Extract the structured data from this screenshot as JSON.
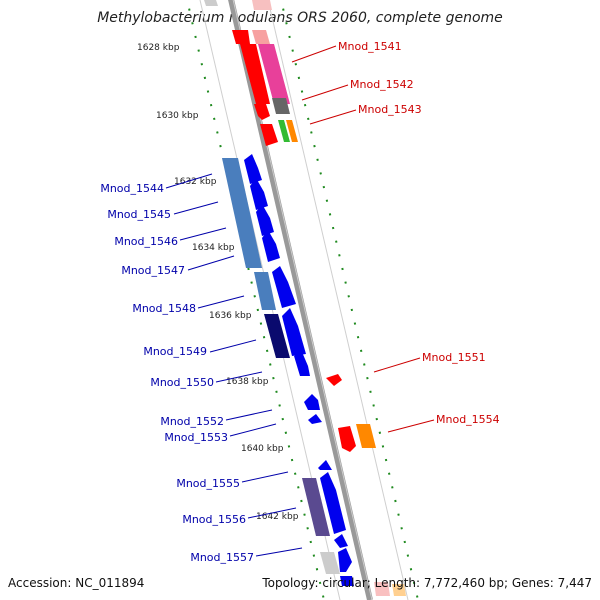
{
  "title": "Methylobacterium nodulans ORS 2060, complete genome",
  "accession_text": "Accession: NC_011894",
  "summary_text": "Topology: circular; Length: 7,772,460 bp; Genes: 7,447",
  "ticks": [
    "1628 kbp",
    "1630 kbp",
    "1632 kbp",
    "1634 kbp",
    "1636 kbp",
    "1638 kbp",
    "1640 kbp",
    "1642 kbp"
  ],
  "genes_forward": [
    "Mnod_1541",
    "Mnod_1542",
    "Mnod_1543",
    "Mnod_1551",
    "Mnod_1554"
  ],
  "genes_reverse": [
    "Mnod_1544",
    "Mnod_1545",
    "Mnod_1546",
    "Mnod_1547",
    "Mnod_1548",
    "Mnod_1549",
    "Mnod_1550",
    "Mnod_1552",
    "Mnod_1553",
    "Mnod_1555",
    "Mnod_1556",
    "Mnod_1557"
  ],
  "colors": {
    "forward_label": "#cc0000",
    "reverse_label": "#0000aa",
    "backbone": "#999999",
    "tick_green": "#1f8a1f",
    "forward_arrow": "#ff0000",
    "reverse_arrow": "#0000ee",
    "magenta": "#e8409a",
    "steel_blue": "#4a7ebd",
    "navy": "#0a0a6e",
    "purple": "#5a4a90",
    "orange": "#ff8800",
    "grey": "#666666"
  }
}
